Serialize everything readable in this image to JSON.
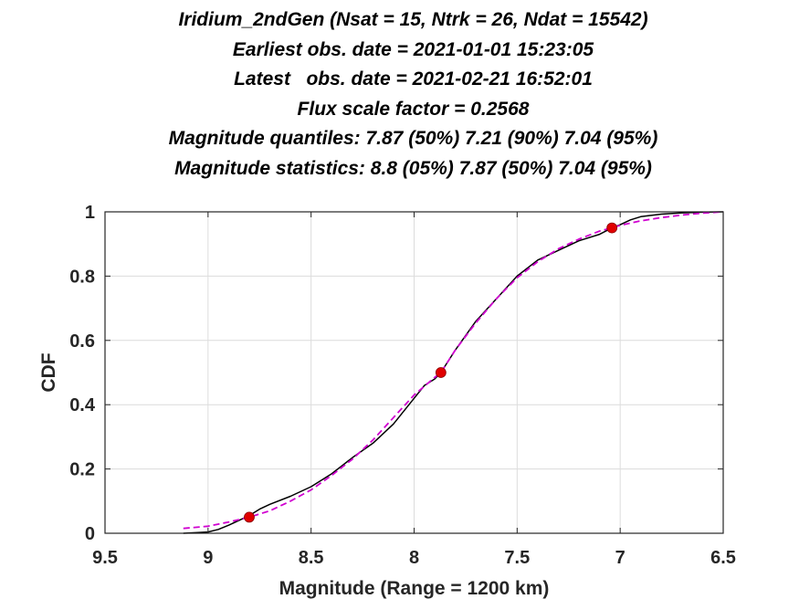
{
  "chart_data": {
    "type": "line",
    "title_lines": [
      "Iridium_2ndGen (Nsat = 15, Ntrk = 26, Ndat = 15542)",
      "Earliest obs. date = 2021-01-01 15:23:05",
      "Latest   obs. date = 2021-02-21 16:52:01",
      "Flux scale factor = 0.2568",
      "Magnitude quantiles: 7.87 (50%) 7.21 (90%) 7.04 (95%)",
      "Magnitude statistics: 8.8 (05%) 7.87 (50%) 7.04 (95%)"
    ],
    "xlabel": "Magnitude (Range = 1200 km)",
    "ylabel": "CDF",
    "xlim": [
      9.5,
      6.5
    ],
    "x_reversed": true,
    "ylim": [
      0,
      1
    ],
    "grid": true,
    "xticks": [
      9.5,
      9,
      8.5,
      8,
      7.5,
      7,
      6.5
    ],
    "xtick_labels": [
      "9.5",
      "9",
      "8.5",
      "8",
      "7.5",
      "7",
      "6.5"
    ],
    "yticks": [
      0,
      0.2,
      0.4,
      0.6,
      0.8,
      1
    ],
    "ytick_labels": [
      "0",
      "0.2",
      "0.4",
      "0.6",
      "0.8",
      "1"
    ],
    "series": [
      {
        "style": "solid",
        "color": "#000000",
        "x": [
          9.12,
          9.05,
          9.0,
          8.95,
          8.9,
          8.85,
          8.8,
          8.75,
          8.7,
          8.6,
          8.5,
          8.4,
          8.3,
          8.2,
          8.1,
          8.0,
          7.95,
          7.9,
          7.87,
          7.8,
          7.7,
          7.6,
          7.5,
          7.4,
          7.3,
          7.2,
          7.1,
          7.04,
          7.0,
          6.95,
          6.9,
          6.8,
          6.7,
          6.6,
          6.5
        ],
        "y": [
          0.0,
          0.002,
          0.004,
          0.012,
          0.025,
          0.04,
          0.055,
          0.075,
          0.09,
          0.115,
          0.145,
          0.185,
          0.235,
          0.28,
          0.34,
          0.42,
          0.46,
          0.48,
          0.5,
          0.57,
          0.66,
          0.73,
          0.8,
          0.85,
          0.88,
          0.91,
          0.93,
          0.95,
          0.96,
          0.975,
          0.985,
          0.993,
          0.997,
          0.999,
          1.0
        ]
      },
      {
        "style": "dashed",
        "color": "#d000d0",
        "x": [
          9.12,
          9.0,
          8.9,
          8.8,
          8.7,
          8.6,
          8.5,
          8.4,
          8.3,
          8.2,
          8.1,
          8.0,
          7.9,
          7.87,
          7.8,
          7.7,
          7.6,
          7.5,
          7.4,
          7.3,
          7.2,
          7.1,
          7.04,
          7.0,
          6.9,
          6.8,
          6.7,
          6.6,
          6.5
        ],
        "y": [
          0.015,
          0.022,
          0.035,
          0.05,
          0.07,
          0.1,
          0.135,
          0.18,
          0.23,
          0.29,
          0.36,
          0.43,
          0.485,
          0.5,
          0.57,
          0.655,
          0.73,
          0.795,
          0.845,
          0.885,
          0.915,
          0.94,
          0.95,
          0.958,
          0.972,
          0.982,
          0.99,
          0.996,
          1.0
        ]
      }
    ],
    "markers": {
      "color": "#e00000",
      "points": [
        {
          "x": 8.8,
          "y": 0.05
        },
        {
          "x": 7.87,
          "y": 0.5
        },
        {
          "x": 7.04,
          "y": 0.95
        }
      ]
    }
  }
}
